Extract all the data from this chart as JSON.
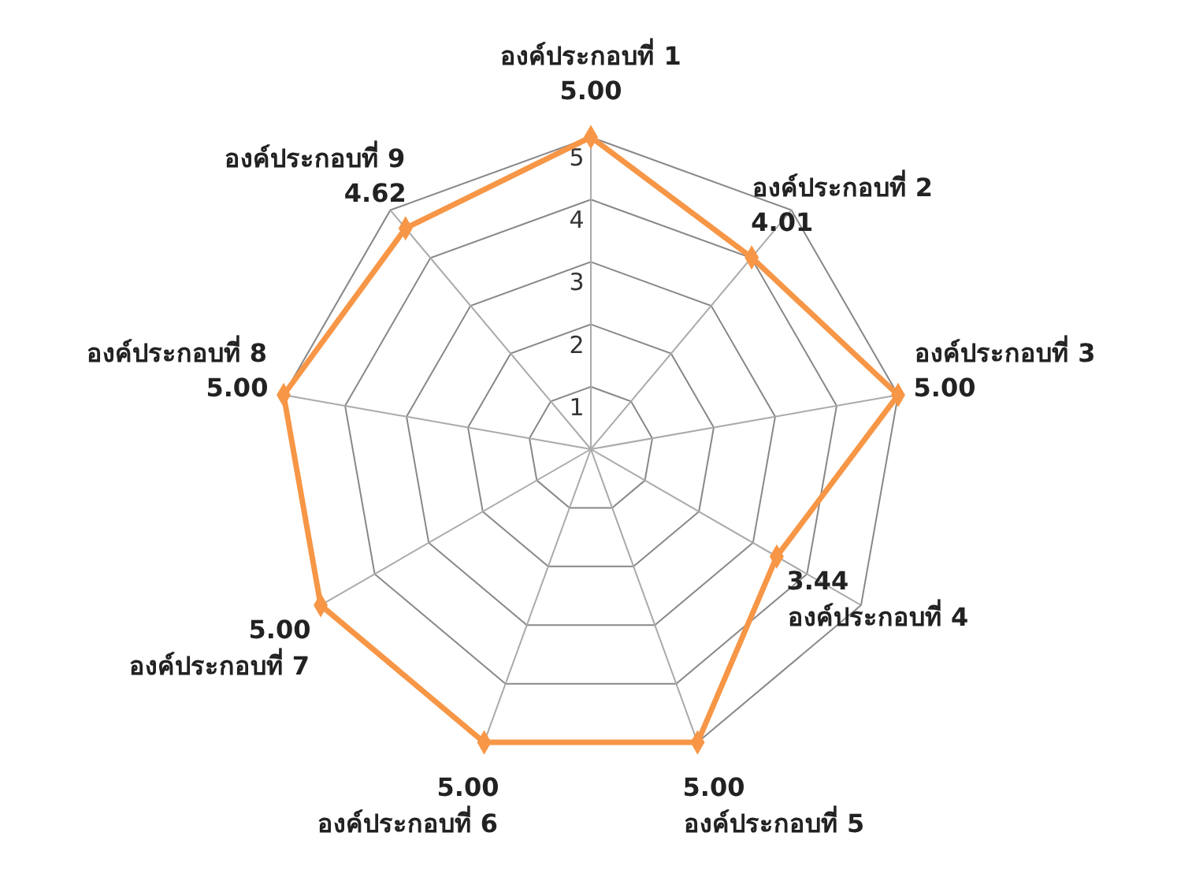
{
  "chart_data": {
    "type": "radar",
    "categories": [
      "องค์ประกอบที่ 1",
      "องค์ประกอบที่ 2",
      "องค์ประกอบที่ 3",
      "องค์ประกอบที่ 4",
      "องค์ประกอบที่ 5",
      "องค์ประกอบที่ 6",
      "องค์ประกอบที่ 7",
      "องค์ประกอบที่ 8",
      "องค์ประกอบที่ 9"
    ],
    "series": [
      {
        "color": "#f79646",
        "values": [
          5,
          4.01,
          5,
          3.44,
          5,
          5,
          5,
          5,
          4.62
        ],
        "value_labels": [
          "5.00",
          "4.01",
          "5.00",
          "3.44",
          "5.00",
          "5.00",
          "5.00",
          "5.00",
          "4.62"
        ]
      }
    ],
    "ylim": [
      0,
      5
    ],
    "yticks": [
      1,
      2,
      3,
      4,
      5
    ],
    "grid": true,
    "marker": "diamond",
    "legend": false
  }
}
